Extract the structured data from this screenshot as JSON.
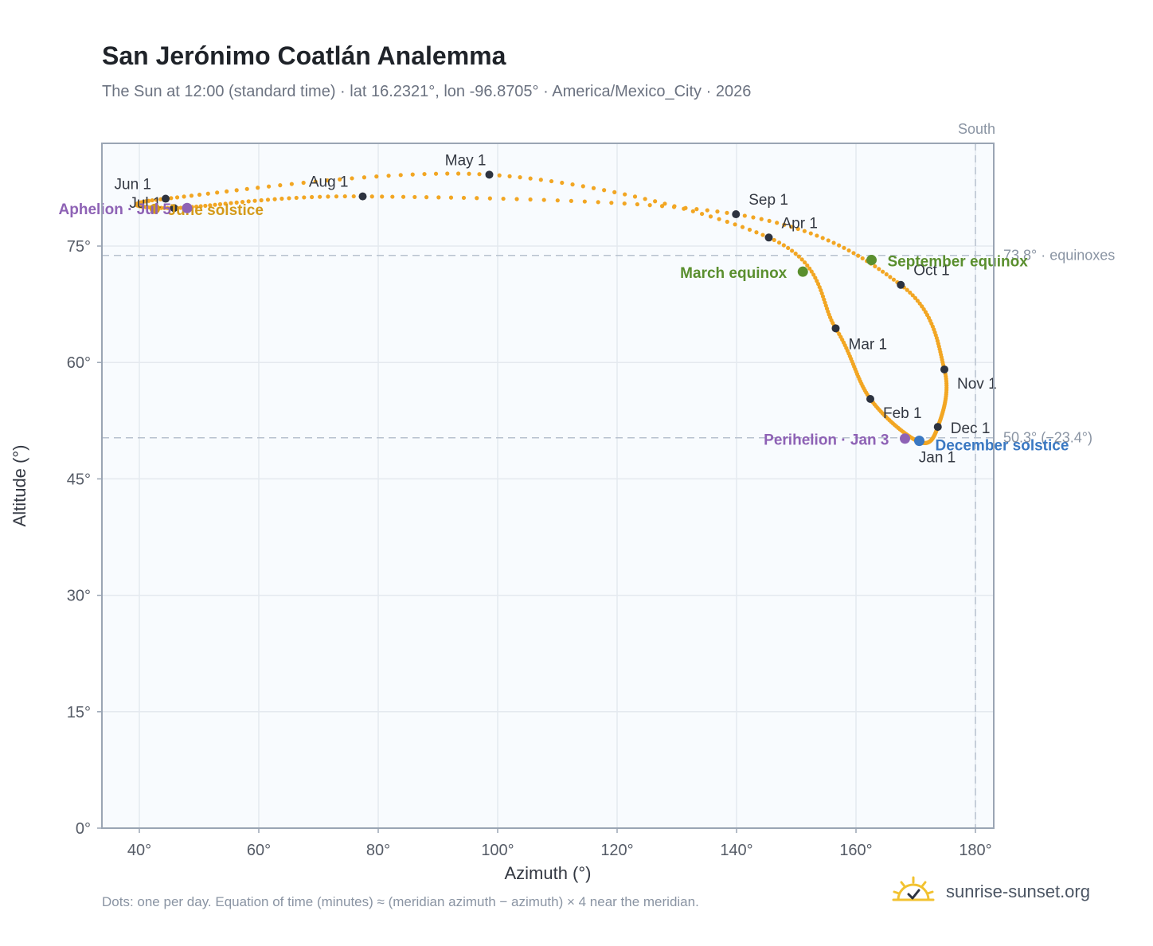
{
  "header": {
    "title": "San Jerónimo Coatlán Analemma",
    "subtitle": "The Sun at 12:00 (standard time) · lat 16.2321°, lon -96.8705° · America/Mexico_City · 2026"
  },
  "footer": {
    "note": "Dots: one per day. Equation of time (minutes) ≈ (meridian azimuth − azimuth) × 4 near the meridian.",
    "brand": "sunrise-sunset.org"
  },
  "colors": {
    "curve": "#f2a623",
    "month_dot": "#2d3340",
    "equinox": "#5a8f2e",
    "december_solstice": "#3a78c2",
    "june_solstice": "#d49a1a",
    "apsis": "#8e62b5",
    "reference_line": "#b8c2cf",
    "plot_bg": "#f8fbfe",
    "grid": "#e4e9ef"
  },
  "chart_data": {
    "type": "scatter",
    "xlabel": "Azimuth (°)",
    "ylabel": "Altitude (°)",
    "xlim": [
      35,
      182
    ],
    "ylim": [
      0,
      88
    ],
    "x_ticks": [
      {
        "value": 40,
        "label": "40°"
      },
      {
        "value": 60,
        "label": "60°"
      },
      {
        "value": 80,
        "label": "80°"
      },
      {
        "value": 100,
        "label": "100°"
      },
      {
        "value": 120,
        "label": "120°"
      },
      {
        "value": 140,
        "label": "140°"
      },
      {
        "value": 160,
        "label": "160°"
      },
      {
        "value": 180,
        "label": "180°"
      }
    ],
    "y_ticks": [
      {
        "value": 0,
        "label": "0°"
      },
      {
        "value": 15,
        "label": "15°"
      },
      {
        "value": 30,
        "label": "30°"
      },
      {
        "value": 45,
        "label": "45°"
      },
      {
        "value": 60,
        "label": "60°"
      },
      {
        "value": 75,
        "label": "75°"
      }
    ],
    "grid": true,
    "reference_lines": [
      {
        "axis": "x",
        "value": 180,
        "label": "South"
      },
      {
        "axis": "y",
        "value": 73.8,
        "label": "73.8° · equinoxes"
      },
      {
        "axis": "y",
        "value": 50.3,
        "label": "50.3° (−23.4°)"
      }
    ],
    "months": [
      {
        "label": "Jan 1",
        "az": 170.5,
        "alt": 49.8
      },
      {
        "label": "Feb 1",
        "az": 162.4,
        "alt": 55.3
      },
      {
        "label": "Mar 1",
        "az": 156.6,
        "alt": 64.4
      },
      {
        "label": "Apr 1",
        "az": 145.4,
        "alt": 76.1
      },
      {
        "label": "May 1",
        "az": 98.6,
        "alt": 84.2
      },
      {
        "label": "Jun 1",
        "az": 44.4,
        "alt": 81.1
      },
      {
        "label": "Jul 1",
        "az": 45.8,
        "alt": 79.9
      },
      {
        "label": "Aug 1",
        "az": 77.4,
        "alt": 81.4
      },
      {
        "label": "Sep 1",
        "az": 139.9,
        "alt": 79.1
      },
      {
        "label": "Oct 1",
        "az": 167.5,
        "alt": 70.0
      },
      {
        "label": "Nov 1",
        "az": 174.8,
        "alt": 59.1
      },
      {
        "label": "Dec 1",
        "az": 173.7,
        "alt": 51.7
      }
    ],
    "events": [
      {
        "label": "March equinox",
        "az": 151.1,
        "alt": 71.7,
        "kind": "equinox"
      },
      {
        "label": "September equinox",
        "az": 162.6,
        "alt": 73.2,
        "kind": "equinox"
      },
      {
        "label": "December solstice",
        "az": 170.6,
        "alt": 49.9,
        "kind": "december_solstice"
      },
      {
        "label": "June solstice",
        "az": 42.6,
        "alt": 79.8,
        "kind": "june_solstice"
      },
      {
        "label": "Perihelion · Jan 3",
        "az": 168.2,
        "alt": 50.2,
        "kind": "apsis"
      },
      {
        "label": "Aphelion · Jul 5",
        "az": 48.0,
        "alt": 79.9,
        "kind": "apsis"
      }
    ]
  }
}
